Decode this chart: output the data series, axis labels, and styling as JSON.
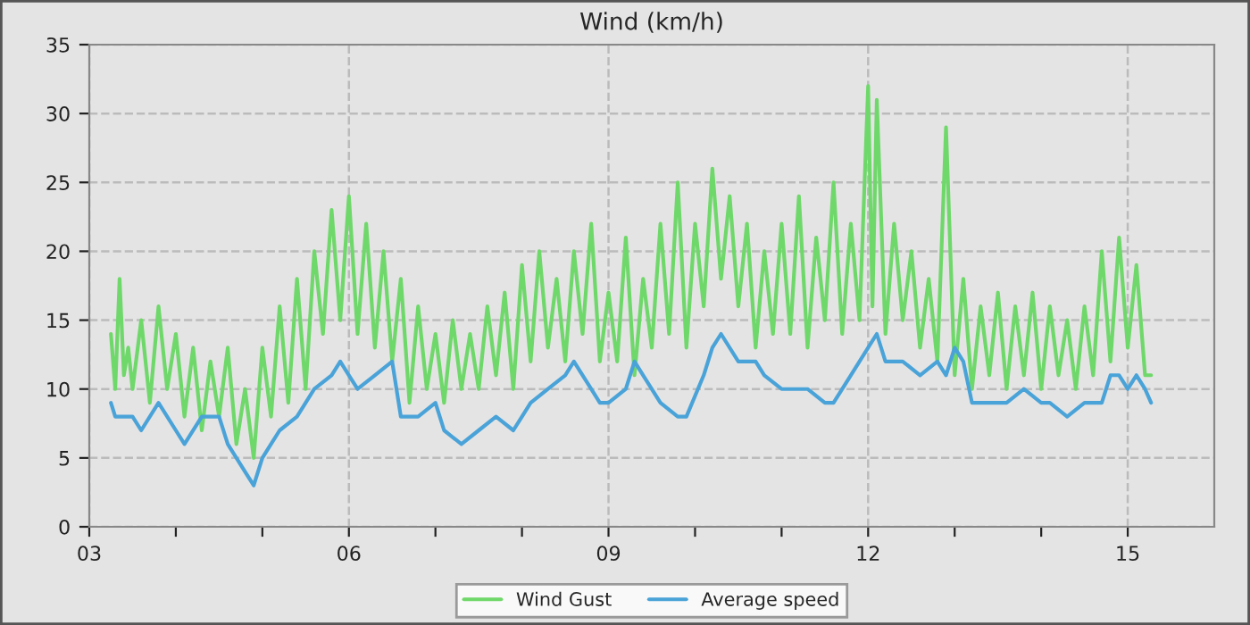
{
  "chart_data": {
    "type": "line",
    "title": "Wind (km/h)",
    "xlim": [
      3,
      16
    ],
    "ylim": [
      0,
      35
    ],
    "xticks": [
      {
        "value": 3,
        "label": "03"
      },
      {
        "value": 4,
        "label": null
      },
      {
        "value": 5,
        "label": null
      },
      {
        "value": 6,
        "label": "06"
      },
      {
        "value": 7,
        "label": null
      },
      {
        "value": 8,
        "label": null
      },
      {
        "value": 9,
        "label": "09"
      },
      {
        "value": 10,
        "label": null
      },
      {
        "value": 11,
        "label": null
      },
      {
        "value": 12,
        "label": "12"
      },
      {
        "value": 13,
        "label": null
      },
      {
        "value": 14,
        "label": null
      },
      {
        "value": 15,
        "label": "15"
      }
    ],
    "yticks": [
      0,
      5,
      10,
      15,
      20,
      25,
      30,
      35
    ],
    "grid": true,
    "legend": "bottom",
    "marker": "none",
    "line_style": "solid",
    "series": [
      {
        "name": "Wind Gust",
        "color": "#6fd86a",
        "x": [
          3.25,
          3.3,
          3.35,
          3.4,
          3.45,
          3.5,
          3.6,
          3.7,
          3.8,
          3.9,
          4.0,
          4.1,
          4.2,
          4.3,
          4.4,
          4.5,
          4.6,
          4.7,
          4.8,
          4.9,
          5.0,
          5.1,
          5.2,
          5.3,
          5.4,
          5.5,
          5.6,
          5.7,
          5.8,
          5.9,
          6.0,
          6.1,
          6.2,
          6.3,
          6.4,
          6.5,
          6.6,
          6.7,
          6.8,
          6.9,
          7.0,
          7.1,
          7.2,
          7.3,
          7.4,
          7.5,
          7.6,
          7.7,
          7.8,
          7.9,
          8.0,
          8.1,
          8.2,
          8.3,
          8.4,
          8.5,
          8.6,
          8.7,
          8.8,
          8.9,
          9.0,
          9.1,
          9.2,
          9.3,
          9.4,
          9.5,
          9.6,
          9.7,
          9.8,
          9.9,
          10.0,
          10.1,
          10.2,
          10.3,
          10.4,
          10.5,
          10.6,
          10.7,
          10.8,
          10.9,
          11.0,
          11.1,
          11.2,
          11.3,
          11.4,
          11.5,
          11.6,
          11.7,
          11.8,
          11.9,
          12.0,
          12.05,
          12.1,
          12.2,
          12.3,
          12.4,
          12.5,
          12.6,
          12.7,
          12.8,
          12.9,
          13.0,
          13.1,
          13.2,
          13.3,
          13.4,
          13.5,
          13.6,
          13.7,
          13.8,
          13.9,
          14.0,
          14.1,
          14.2,
          14.3,
          14.4,
          14.5,
          14.6,
          14.7,
          14.8,
          14.9,
          15.0,
          15.1,
          15.2,
          15.27
        ],
        "values": [
          14,
          10,
          18,
          11,
          13,
          10,
          15,
          9,
          16,
          10,
          14,
          8,
          13,
          7,
          12,
          8,
          13,
          6,
          10,
          5,
          13,
          8,
          16,
          9,
          18,
          10,
          20,
          14,
          23,
          15,
          24,
          14,
          22,
          13,
          20,
          12,
          18,
          9,
          16,
          10,
          14,
          9,
          15,
          10,
          14,
          10,
          16,
          11,
          17,
          10,
          19,
          12,
          20,
          13,
          18,
          12,
          20,
          14,
          22,
          12,
          17,
          12,
          21,
          11,
          18,
          13,
          22,
          14,
          25,
          13,
          22,
          16,
          26,
          18,
          24,
          16,
          22,
          13,
          20,
          14,
          22,
          14,
          24,
          13,
          21,
          15,
          25,
          14,
          22,
          15,
          32,
          16,
          31,
          14,
          22,
          15,
          20,
          13,
          18,
          12,
          29,
          11,
          18,
          10,
          16,
          11,
          17,
          10,
          16,
          11,
          17,
          10,
          16,
          11,
          15,
          10,
          16,
          11,
          20,
          12,
          21,
          13,
          19,
          11,
          11
        ]
      },
      {
        "name": "Average speed",
        "color": "#4aa3d8",
        "x": [
          3.25,
          3.3,
          3.5,
          3.6,
          3.8,
          4.0,
          4.1,
          4.3,
          4.5,
          4.6,
          4.8,
          4.9,
          5.0,
          5.1,
          5.2,
          5.4,
          5.5,
          5.6,
          5.8,
          5.9,
          6.0,
          6.1,
          6.3,
          6.5,
          6.6,
          6.8,
          7.0,
          7.1,
          7.3,
          7.5,
          7.7,
          7.9,
          8.0,
          8.1,
          8.3,
          8.5,
          8.6,
          8.8,
          8.9,
          9.0,
          9.2,
          9.3,
          9.4,
          9.6,
          9.8,
          9.9,
          10.1,
          10.2,
          10.3,
          10.5,
          10.7,
          10.8,
          11.0,
          11.2,
          11.3,
          11.5,
          11.6,
          11.8,
          11.9,
          12.0,
          12.1,
          12.2,
          12.4,
          12.6,
          12.8,
          12.9,
          13.0,
          13.1,
          13.2,
          13.4,
          13.6,
          13.8,
          14.0,
          14.1,
          14.3,
          14.5,
          14.7,
          14.8,
          14.9,
          15.0,
          15.1,
          15.2,
          15.27
        ],
        "values": [
          9,
          8,
          8,
          7,
          9,
          7,
          6,
          8,
          8,
          6,
          4,
          3,
          5,
          6,
          7,
          8,
          9,
          10,
          11,
          12,
          11,
          10,
          11,
          12,
          8,
          8,
          9,
          7,
          6,
          7,
          8,
          7,
          8,
          9,
          10,
          11,
          12,
          10,
          9,
          9,
          10,
          12,
          11,
          9,
          8,
          8,
          11,
          13,
          14,
          12,
          12,
          11,
          10,
          10,
          10,
          9,
          9,
          11,
          12,
          13,
          14,
          12,
          12,
          11,
          12,
          11,
          13,
          12,
          9,
          9,
          9,
          10,
          9,
          9,
          8,
          9,
          9,
          11,
          11,
          10,
          11,
          10,
          9
        ]
      }
    ]
  }
}
